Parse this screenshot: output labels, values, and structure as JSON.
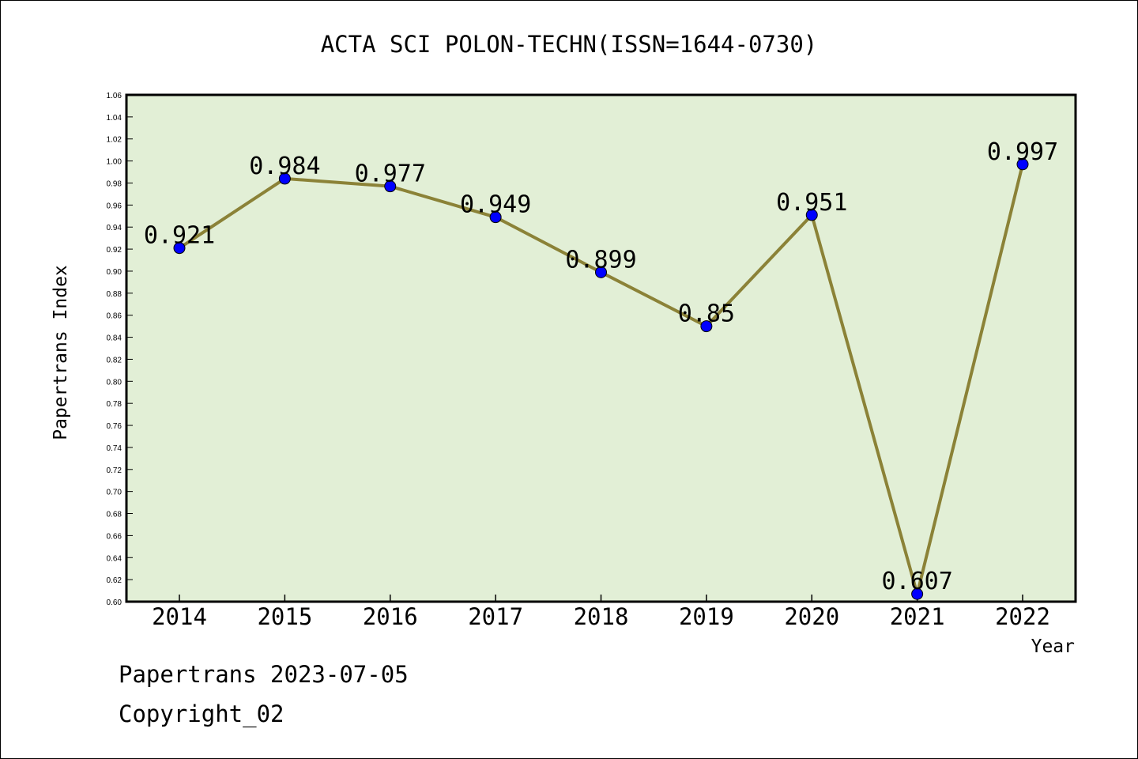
{
  "chart_data": {
    "type": "line",
    "title": "ACTA SCI POLON-TECHN(ISSN=1644-0730)",
    "xlabel": "Year",
    "ylabel": "Papertrans Index",
    "categories": [
      "2014",
      "2015",
      "2016",
      "2017",
      "2018",
      "2019",
      "2020",
      "2021",
      "2022"
    ],
    "values": [
      0.921,
      0.984,
      0.977,
      0.949,
      0.899,
      0.85,
      0.951,
      0.607,
      0.997
    ],
    "data_labels": [
      "0.921",
      "0.984",
      "0.977",
      "0.949",
      "0.899",
      "0.85",
      "0.951",
      "0.607",
      "0.997"
    ],
    "ylim": [
      0.6,
      1.06
    ],
    "yticks": [
      "0.60",
      "0.62",
      "0.64",
      "0.66",
      "0.68",
      "0.70",
      "0.72",
      "0.74",
      "0.76",
      "0.78",
      "0.80",
      "0.82",
      "0.84",
      "0.86",
      "0.88",
      "0.90",
      "0.92",
      "0.94",
      "0.96",
      "0.98",
      "1.00",
      "1.02",
      "1.04",
      "1.06"
    ],
    "grid": false,
    "colors": {
      "plot_background": "#e2efd6",
      "line": "#8b8237",
      "marker": "#0000ff"
    }
  },
  "footer": {
    "line1": "Papertrans 2023-07-05",
    "line2": "Copyright_02"
  }
}
